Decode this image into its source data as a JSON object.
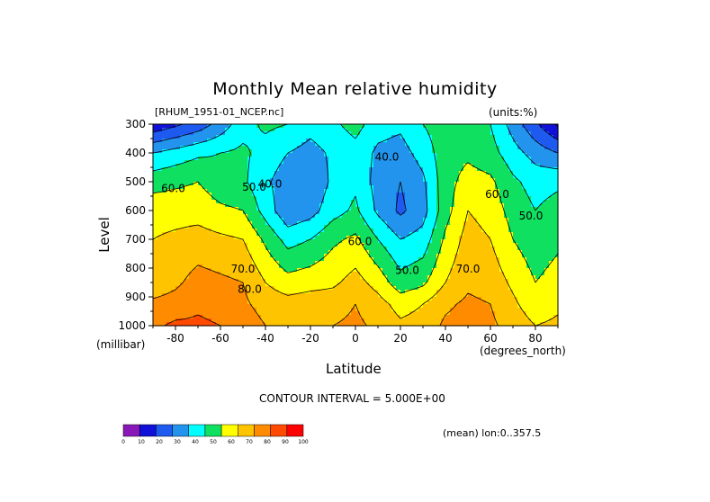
{
  "chart_data": {
    "type": "heatmap",
    "title": "Monthly Mean relative humidity",
    "file": "[RHUM_1951-01_NCEP.nc]",
    "units": "(units:%)",
    "xlabel": "Latitude",
    "x_unit": "(degrees_north)",
    "ylabel": "Level",
    "y_unit": "(millibar)",
    "xlim": [
      -90,
      90
    ],
    "ylim": [
      1000,
      300
    ],
    "x_ticks": [
      -80,
      -60,
      -40,
      -20,
      0,
      20,
      40,
      60,
      80
    ],
    "y_ticks": [
      300,
      400,
      500,
      600,
      700,
      800,
      900,
      1000
    ],
    "contour_interval_note": "CONTOUR INTERVAL = 5.000E+00",
    "mean_note": "(mean) lon:0..357.5",
    "colorbar": {
      "ticks": [
        0,
        10,
        20,
        30,
        40,
        50,
        60,
        70,
        80,
        90,
        100
      ],
      "colors": [
        "#8a18b8",
        "#1010d8",
        "#1e5af0",
        "#2294ee",
        "#00ffff",
        "#10e060",
        "#ffff00",
        "#ffc400",
        "#ff8c00",
        "#ff4a00",
        "#ff0000"
      ]
    },
    "lat": [
      -90,
      -80,
      -70,
      -60,
      -50,
      -40,
      -30,
      -20,
      -10,
      0,
      10,
      20,
      30,
      40,
      50,
      60,
      70,
      80,
      90
    ],
    "levels": [
      1000,
      925,
      850,
      700,
      600,
      500,
      400,
      300
    ],
    "values": [
      [
        88,
        92,
        92,
        90,
        86,
        80,
        78,
        80,
        80,
        82,
        78,
        72,
        74,
        82,
        84,
        82,
        76,
        70,
        72
      ],
      [
        82,
        84,
        88,
        86,
        82,
        76,
        74,
        76,
        76,
        80,
        74,
        66,
        70,
        78,
        82,
        80,
        72,
        64,
        68
      ],
      [
        74,
        78,
        84,
        82,
        80,
        70,
        64,
        66,
        68,
        74,
        66,
        54,
        58,
        70,
        78,
        76,
        68,
        60,
        64
      ],
      [
        70,
        72,
        74,
        72,
        70,
        58,
        46,
        50,
        58,
        62,
        50,
        40,
        44,
        62,
        74,
        70,
        60,
        54,
        58
      ],
      [
        66,
        66,
        66,
        62,
        60,
        46,
        32,
        36,
        46,
        52,
        38,
        28,
        36,
        56,
        70,
        66,
        56,
        50,
        54
      ],
      [
        56,
        58,
        60,
        54,
        52,
        42,
        34,
        32,
        42,
        48,
        36,
        30,
        38,
        56,
        64,
        62,
        52,
        46,
        48
      ],
      [
        40,
        44,
        48,
        50,
        52,
        46,
        40,
        36,
        42,
        46,
        38,
        36,
        44,
        56,
        58,
        54,
        44,
        36,
        30
      ],
      [
        12,
        18,
        24,
        34,
        46,
        52,
        50,
        44,
        48,
        54,
        44,
        42,
        50,
        56,
        54,
        50,
        36,
        22,
        8
      ]
    ],
    "contour_labels": [
      {
        "text": "40.0",
        "lat": 14,
        "level": 415
      },
      {
        "text": "40.0",
        "lat": -38,
        "level": 510
      },
      {
        "text": "50.0",
        "lat": -45,
        "level": 520
      },
      {
        "text": "50.0",
        "lat": 23,
        "level": 810
      },
      {
        "text": "50.0",
        "lat": 78,
        "level": 620
      },
      {
        "text": "60.0",
        "lat": -81,
        "level": 525
      },
      {
        "text": "60.0",
        "lat": 2,
        "level": 710
      },
      {
        "text": "60.0",
        "lat": 63,
        "level": 545
      },
      {
        "text": "70.0",
        "lat": -50,
        "level": 805
      },
      {
        "text": "70.0",
        "lat": 50,
        "level": 805
      },
      {
        "text": "80.0",
        "lat": -47,
        "level": 875
      }
    ]
  }
}
